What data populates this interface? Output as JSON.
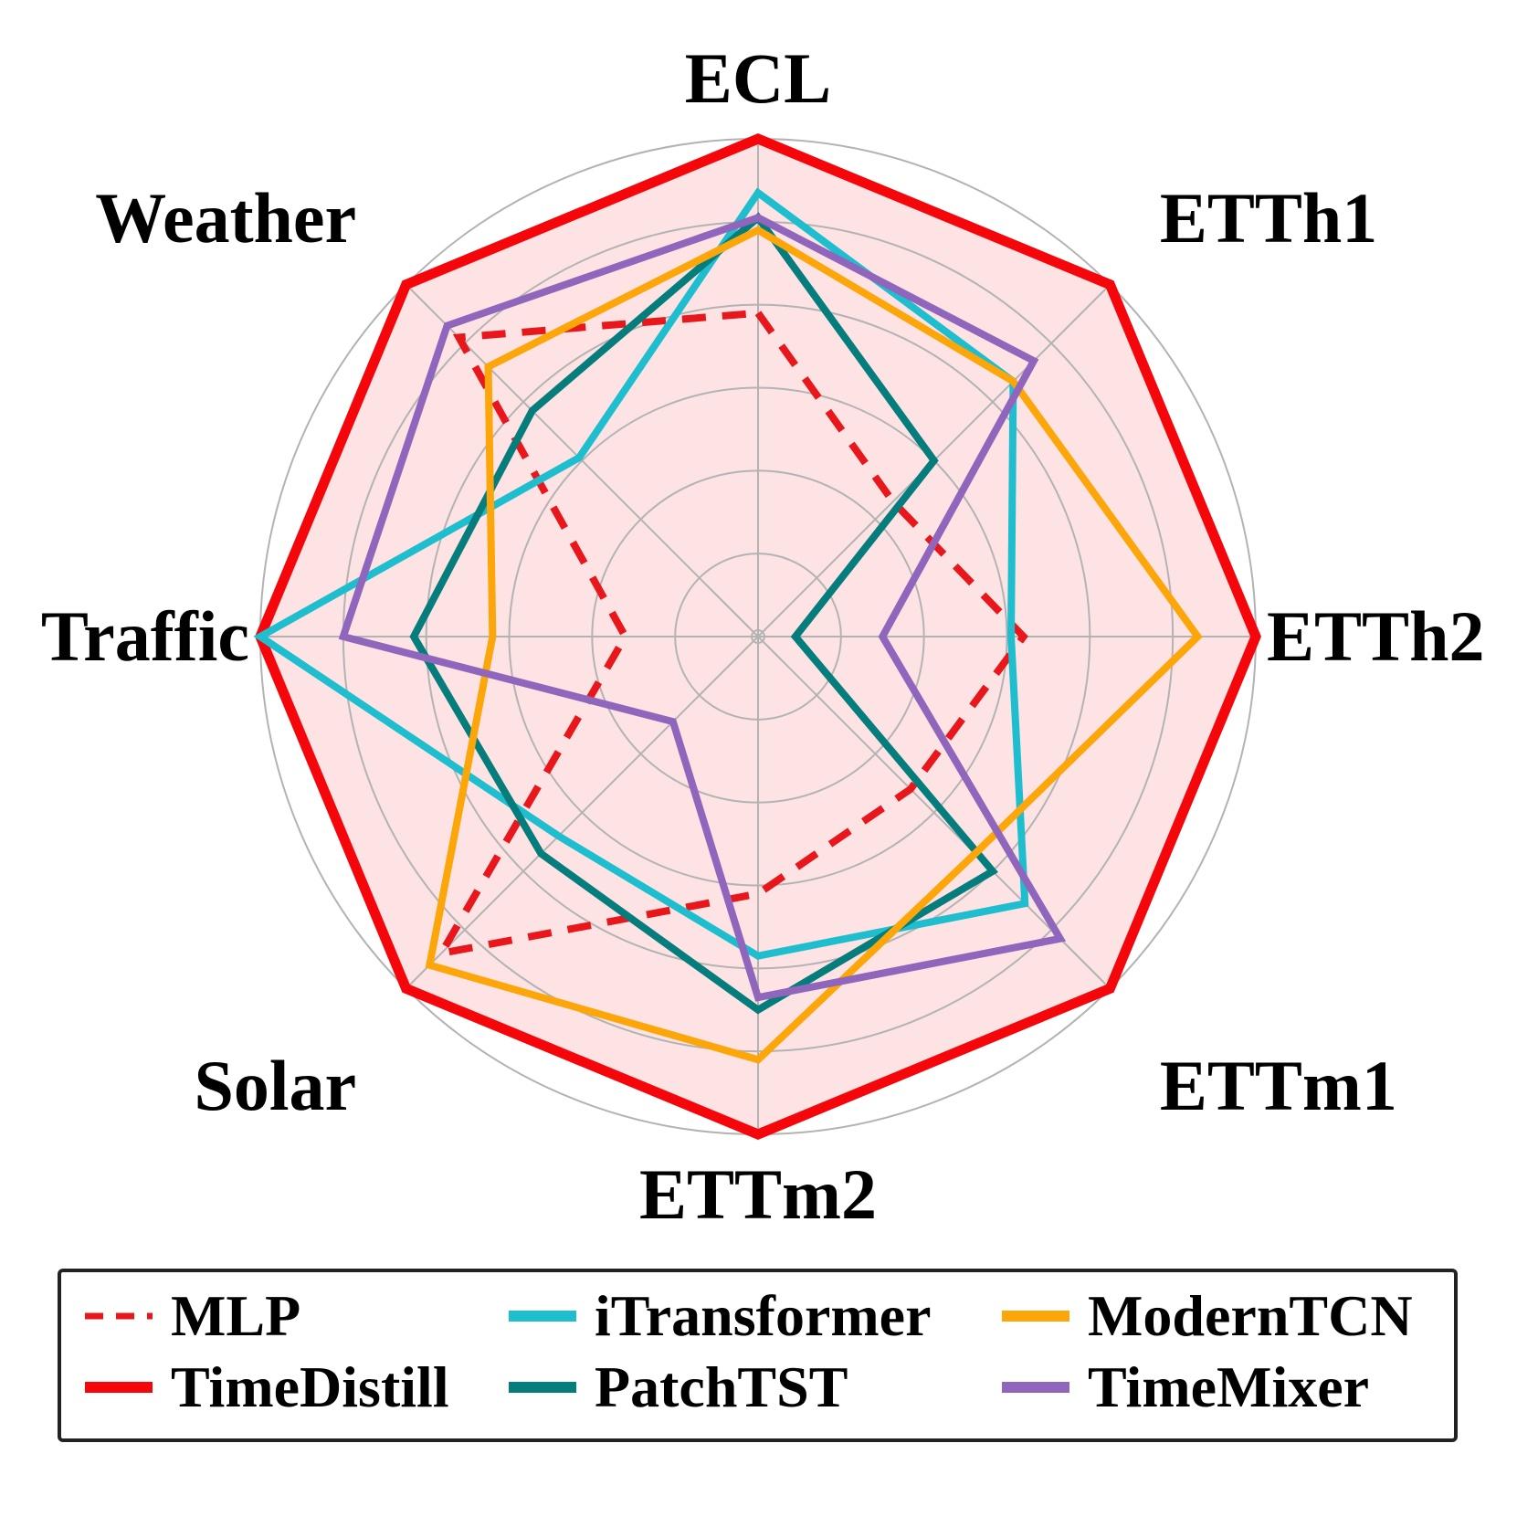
{
  "chart_data": {
    "type": "radar",
    "axes": [
      "ECL",
      "ETTh1",
      "ETTh2",
      "ETTm1",
      "ETTm2",
      "Solar",
      "Traffic",
      "Weather"
    ],
    "rmax": 6,
    "grid_levels": [
      1,
      2,
      3,
      4,
      5,
      6
    ],
    "grid": true,
    "legend_position": "bottom",
    "series": [
      {
        "name": "MLP",
        "color": "#e8171b",
        "dash": true,
        "fill": false,
        "values": [
          3.9,
          2.3,
          3.2,
          2.6,
          3.1,
          5.4,
          1.6,
          5.1
        ]
      },
      {
        "name": "TimeDistill",
        "color": "#f5060a",
        "dash": false,
        "fill": true,
        "values": [
          6.0,
          6.0,
          6.0,
          6.0,
          6.0,
          6.0,
          6.0,
          6.0
        ]
      },
      {
        "name": "iTransformer",
        "color": "#1fbecf",
        "dash": false,
        "fill": false,
        "values": [
          5.35,
          4.35,
          3.05,
          4.55,
          3.85,
          3.4,
          6.0,
          3.05
        ]
      },
      {
        "name": "PatchTST",
        "color": "#067d7d",
        "dash": false,
        "fill": false,
        "values": [
          5.05,
          3.0,
          0.45,
          4.0,
          4.5,
          3.7,
          4.15,
          3.85
        ]
      },
      {
        "name": "ModernTCN",
        "color": "#fca60a",
        "dash": false,
        "fill": false,
        "values": [
          4.9,
          4.35,
          5.3,
          3.7,
          5.1,
          5.6,
          3.2,
          4.6
        ]
      },
      {
        "name": "TimeMixer",
        "color": "#8f66bc",
        "dash": false,
        "fill": false,
        "values": [
          5.05,
          4.7,
          1.5,
          5.15,
          4.35,
          1.45,
          5.0,
          5.3
        ]
      }
    ]
  },
  "legend": {
    "items": [
      {
        "label": "MLP"
      },
      {
        "label": "iTransformer"
      },
      {
        "label": "ModernTCN"
      },
      {
        "label": "TimeDistill"
      },
      {
        "label": "PatchTST"
      },
      {
        "label": "TimeMixer"
      }
    ]
  }
}
